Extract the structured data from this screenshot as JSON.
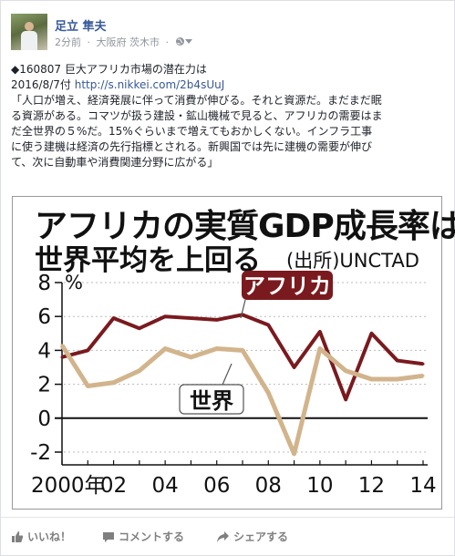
{
  "header": {
    "name": "足立 隼夫",
    "time": "2分前",
    "location": "大阪府 茨木市",
    "dot": "·"
  },
  "post": {
    "line1": "◆160807 巨大アフリカ市場の潜在力は",
    "date": "2016/8/7付",
    "link": "http://s.nikkei.com/2b4sUuJ",
    "lines": [
      "「人口が増え、経済発展に伴って消費が伸びる。それと資源だ。まだまだ眠",
      "る資源がある。コマツが扱う建設・鉱山機械で見ると、アフリカの需要はま",
      "だ全世界の５%だ。15%ぐらいまで増えてもおかしくない。インフラ工事",
      "に使う建機は経済の先行指標とされる。新興国では先に建機の需要が伸び",
      "て、次に自動車や消費関連分野に広がる」"
    ]
  },
  "chart_data": {
    "type": "line",
    "title": "アフリカの実質GDP成長率は",
    "subtitle": "世界平均を上回る",
    "source": "(出所)UNCTAD",
    "unit": "%",
    "x": [
      2000,
      2001,
      2002,
      2003,
      2004,
      2005,
      2006,
      2007,
      2008,
      2009,
      2010,
      2011,
      2012,
      2013,
      2014
    ],
    "x_tick_labels": [
      "2000年",
      "02",
      "04",
      "06",
      "08",
      "10",
      "12",
      "14"
    ],
    "x_tick_values": [
      2000,
      2002,
      2004,
      2006,
      2008,
      2010,
      2012,
      2014
    ],
    "y_ticks": [
      "8",
      "6",
      "4",
      "2",
      "0",
      "-2"
    ],
    "ylim": [
      -3,
      8
    ],
    "series": [
      {
        "name": "アフリカ",
        "color": "#7a1a1e",
        "values": [
          3.6,
          4.0,
          5.9,
          5.3,
          6.0,
          5.9,
          5.8,
          6.1,
          5.5,
          3.0,
          5.1,
          1.1,
          5.0,
          3.4,
          3.2
        ]
      },
      {
        "name": "世界",
        "color": "#d2b48c",
        "values": [
          4.3,
          1.9,
          2.1,
          2.8,
          4.1,
          3.6,
          4.1,
          4.0,
          1.5,
          -2.1,
          4.1,
          2.8,
          2.3,
          2.3,
          2.5
        ]
      }
    ]
  },
  "actions": {
    "like": "いいね！",
    "comment": "コメントする",
    "share": "シェアする"
  }
}
